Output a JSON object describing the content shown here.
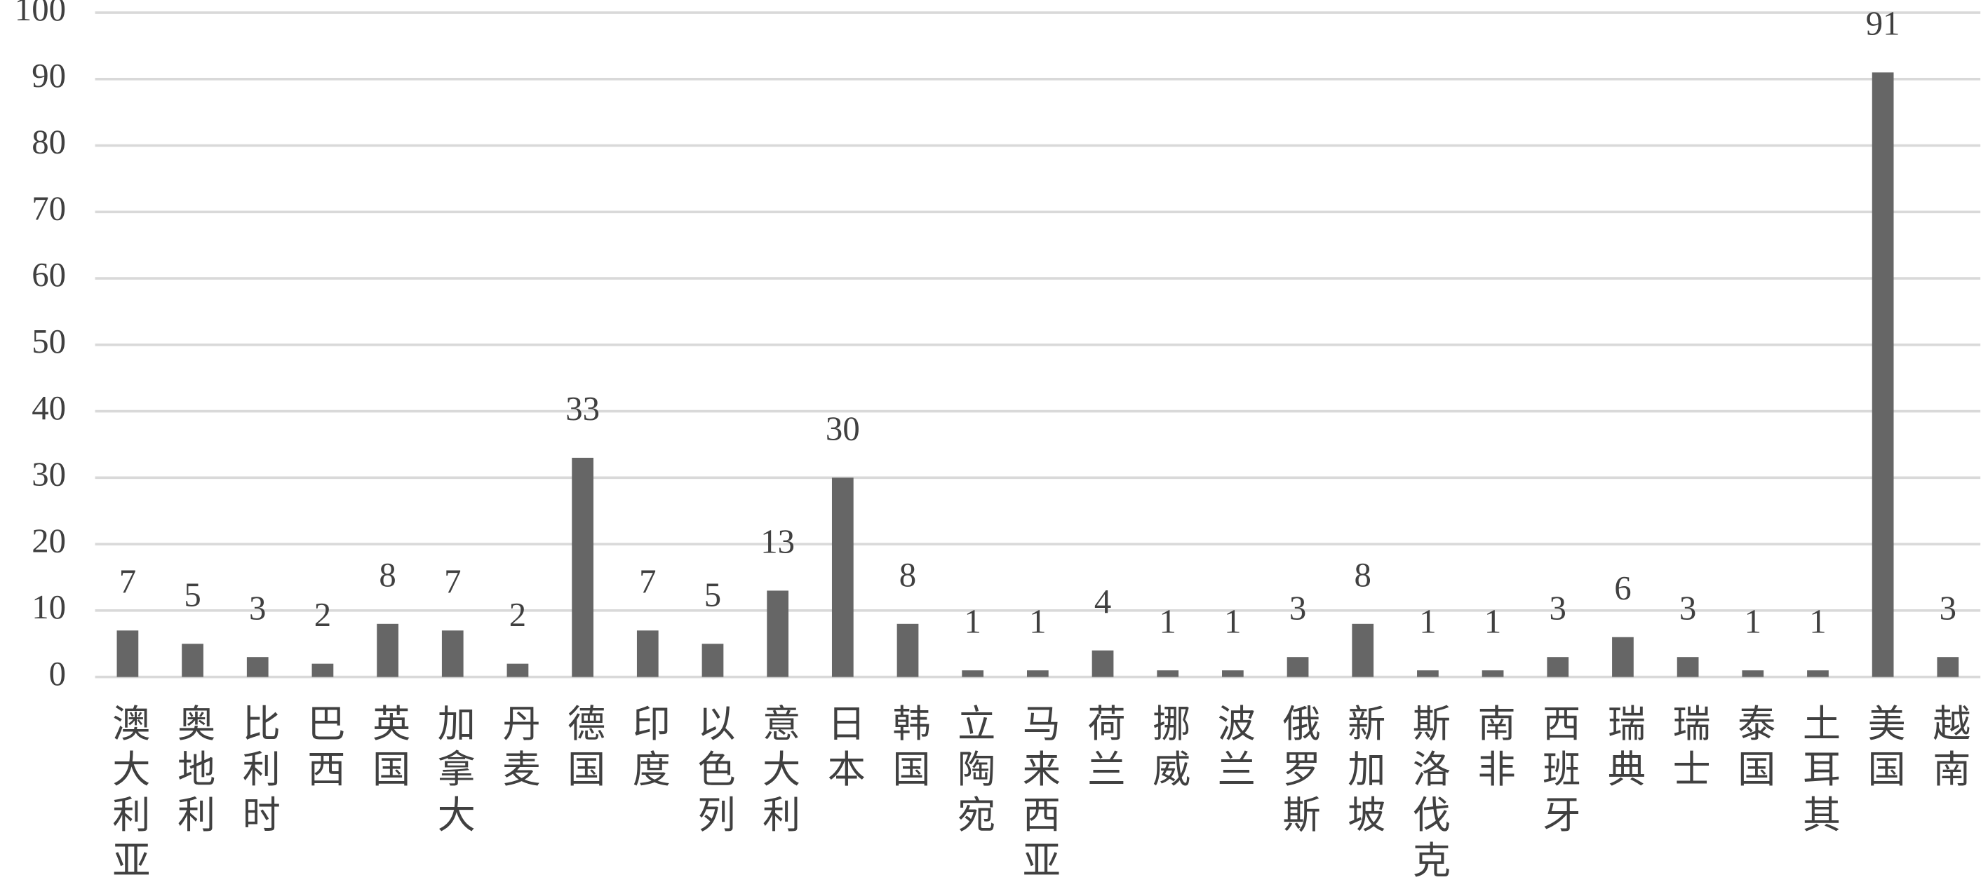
{
  "chart_data": {
    "type": "bar",
    "categories": [
      "澳大利亚",
      "奥地利",
      "比利时",
      "巴西",
      "英国",
      "加拿大",
      "丹麦",
      "德国",
      "印度",
      "以色列",
      "意大利",
      "日本",
      "韩国",
      "立陶宛",
      "马来西亚",
      "荷兰",
      "挪威",
      "波兰",
      "俄罗斯",
      "新加坡",
      "斯洛伐克",
      "南非",
      "西班牙",
      "瑞典",
      "瑞士",
      "泰国",
      "土耳其",
      "美国",
      "越南"
    ],
    "values": [
      7,
      5,
      3,
      2,
      8,
      7,
      2,
      33,
      7,
      5,
      13,
      30,
      8,
      1,
      1,
      4,
      1,
      1,
      3,
      8,
      1,
      1,
      3,
      6,
      3,
      1,
      1,
      91,
      3
    ],
    "color": "#666666",
    "ylim": [
      0,
      100
    ],
    "yticks": [
      0,
      10,
      20,
      30,
      40,
      50,
      60,
      70,
      80,
      90,
      100
    ],
    "grid": true
  }
}
